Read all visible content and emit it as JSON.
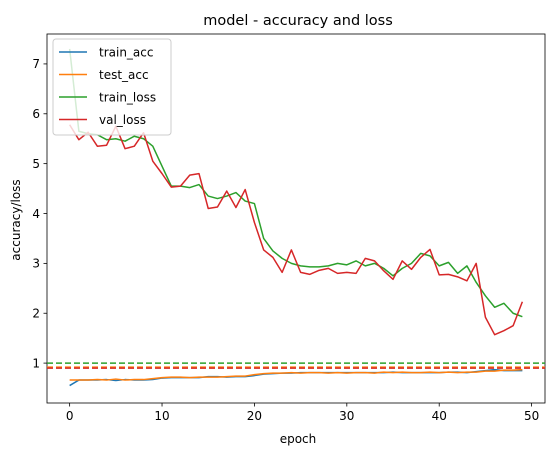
{
  "chart_data": {
    "type": "line",
    "title": "model - accuracy and loss",
    "xlabel": "epoch",
    "ylabel": "accuracy/loss",
    "xlim": [
      -2.45,
      51.45
    ],
    "ylim": [
      0.2,
      7.6
    ],
    "xticks": [
      0,
      10,
      20,
      30,
      40,
      50
    ],
    "yticks": [
      1,
      2,
      3,
      4,
      5,
      6,
      7
    ],
    "grid": false,
    "legend_position": "top-left",
    "x": [
      0,
      1,
      2,
      3,
      4,
      5,
      6,
      7,
      8,
      9,
      10,
      11,
      12,
      13,
      14,
      15,
      16,
      17,
      18,
      19,
      20,
      21,
      22,
      23,
      24,
      25,
      26,
      27,
      28,
      29,
      30,
      31,
      32,
      33,
      34,
      35,
      36,
      37,
      38,
      39,
      40,
      41,
      42,
      43,
      44,
      45,
      46,
      47,
      48,
      49
    ],
    "series": [
      {
        "name": "train_acc",
        "color": "#1f77b4",
        "values": [
          0.55,
          0.66,
          0.66,
          0.66,
          0.67,
          0.65,
          0.67,
          0.66,
          0.66,
          0.67,
          0.7,
          0.71,
          0.71,
          0.71,
          0.71,
          0.73,
          0.73,
          0.72,
          0.73,
          0.73,
          0.75,
          0.78,
          0.79,
          0.8,
          0.8,
          0.81,
          0.81,
          0.81,
          0.81,
          0.81,
          0.81,
          0.81,
          0.81,
          0.81,
          0.81,
          0.82,
          0.81,
          0.81,
          0.81,
          0.81,
          0.81,
          0.82,
          0.82,
          0.81,
          0.83,
          0.85,
          0.87,
          0.85,
          0.85,
          0.85
        ]
      },
      {
        "name": "test_acc",
        "color": "#ff7f0e",
        "values": [
          0.66,
          0.66,
          0.66,
          0.67,
          0.66,
          0.68,
          0.66,
          0.67,
          0.67,
          0.69,
          0.71,
          0.72,
          0.72,
          0.71,
          0.72,
          0.72,
          0.72,
          0.73,
          0.74,
          0.74,
          0.77,
          0.79,
          0.8,
          0.8,
          0.81,
          0.8,
          0.81,
          0.81,
          0.8,
          0.81,
          0.8,
          0.81,
          0.81,
          0.8,
          0.82,
          0.81,
          0.82,
          0.81,
          0.81,
          0.82,
          0.81,
          0.82,
          0.81,
          0.82,
          0.82,
          0.84,
          0.84,
          0.86,
          0.86,
          0.87
        ]
      },
      {
        "name": "train_loss",
        "color": "#2ca02c",
        "values": [
          7.3,
          5.65,
          5.6,
          5.58,
          5.48,
          5.5,
          5.45,
          5.55,
          5.5,
          5.35,
          4.95,
          4.55,
          4.55,
          4.52,
          4.58,
          4.35,
          4.3,
          4.35,
          4.42,
          4.25,
          4.2,
          3.5,
          3.25,
          3.1,
          3.0,
          2.95,
          2.93,
          2.93,
          2.95,
          3.0,
          2.97,
          3.05,
          2.95,
          3.0,
          2.9,
          2.75,
          2.9,
          3.0,
          3.2,
          3.15,
          2.95,
          3.02,
          2.8,
          2.95,
          2.62,
          2.35,
          2.12,
          2.2,
          2.0,
          1.93
        ]
      },
      {
        "name": "val_loss",
        "color": "#d62728",
        "values": [
          5.78,
          5.48,
          5.63,
          5.35,
          5.37,
          5.75,
          5.3,
          5.35,
          5.62,
          5.05,
          4.8,
          4.53,
          4.55,
          4.77,
          4.8,
          4.1,
          4.13,
          4.45,
          4.12,
          4.48,
          3.82,
          3.27,
          3.12,
          2.82,
          3.27,
          2.82,
          2.78,
          2.86,
          2.9,
          2.8,
          2.82,
          2.8,
          3.1,
          3.05,
          2.85,
          2.68,
          3.05,
          2.88,
          3.12,
          3.28,
          2.77,
          2.78,
          2.73,
          2.65,
          3.0,
          1.92,
          1.57,
          1.65,
          1.75,
          2.23
        ]
      }
    ],
    "reference_lines": [
      {
        "y": 1.0,
        "color": "#2ca02c",
        "style": "dashed"
      },
      {
        "y": 0.92,
        "color": "#ff7f0e",
        "style": "dashed"
      },
      {
        "y": 0.9,
        "color": "#d62728",
        "style": "dashed"
      }
    ]
  }
}
